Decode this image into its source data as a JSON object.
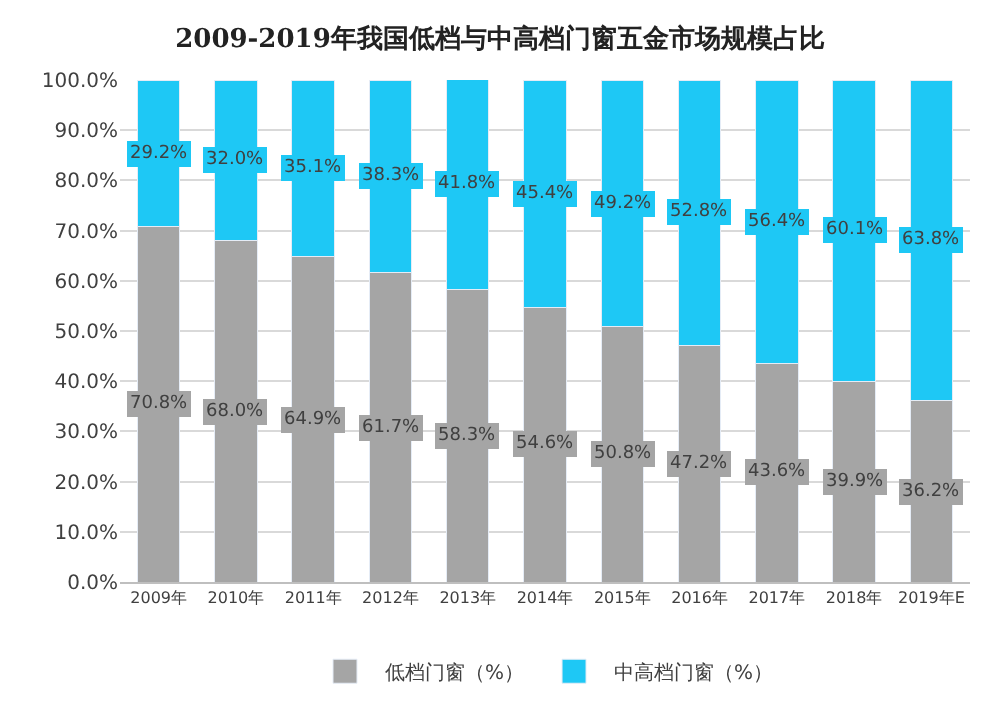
{
  "chart_data": {
    "type": "bar",
    "stacked": true,
    "title": "2009-2019年我国低档与中高档门窗五金市场规模占比",
    "categories": [
      "2009年",
      "2010年",
      "2011年",
      "2012年",
      "2013年",
      "2014年",
      "2015年",
      "2016年",
      "2017年",
      "2018年",
      "2019年E"
    ],
    "series": [
      {
        "name": "低档门窗（%）",
        "color": "#a5a5a5",
        "values": [
          70.8,
          68.0,
          64.9,
          61.7,
          58.3,
          54.6,
          50.8,
          47.2,
          43.6,
          39.9,
          36.2
        ],
        "value_labels": [
          "70.8%",
          "68.0%",
          "64.9%",
          "61.7%",
          "58.3%",
          "54.6%",
          "50.8%",
          "47.2%",
          "43.6%",
          "39.9%",
          "36.2%"
        ]
      },
      {
        "name": "中高档门窗（%）",
        "color": "#1ec8f5",
        "values": [
          29.2,
          32.0,
          35.1,
          38.3,
          41.8,
          45.4,
          49.2,
          52.8,
          56.4,
          60.1,
          63.8
        ],
        "value_labels": [
          "29.2%",
          "32.0%",
          "35.1%",
          "38.3%",
          "41.8%",
          "45.4%",
          "49.2%",
          "52.8%",
          "56.4%",
          "60.1%",
          "63.8%"
        ]
      }
    ],
    "ylim": [
      0,
      100
    ],
    "yticks": [
      {
        "value": 0,
        "label": "0.0%"
      },
      {
        "value": 10,
        "label": "10.0%"
      },
      {
        "value": 20,
        "label": "20.0%"
      },
      {
        "value": 30,
        "label": "30.0%"
      },
      {
        "value": 40,
        "label": "40.0%"
      },
      {
        "value": 50,
        "label": "50.0%"
      },
      {
        "value": 60,
        "label": "60.0%"
      },
      {
        "value": 70,
        "label": "70.0%"
      },
      {
        "value": 80,
        "label": "80.0%"
      },
      {
        "value": 90,
        "label": "90.0%"
      },
      {
        "value": 100,
        "label": "100.0%"
      }
    ],
    "grid": "y",
    "legend": "bottom"
  }
}
